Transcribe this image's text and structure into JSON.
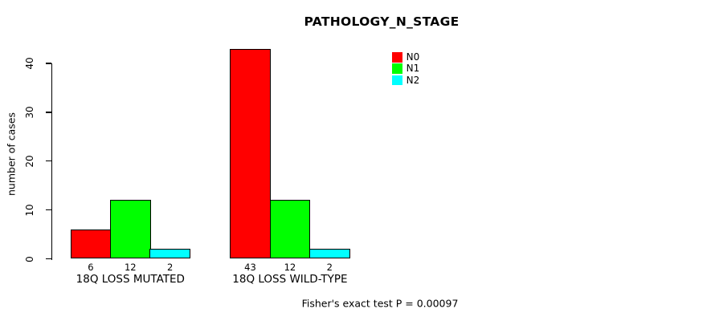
{
  "chart_data": {
    "type": "bar",
    "title": "PATHOLOGY_N_STAGE",
    "ylabel": "number of cases",
    "xlabel": "",
    "categories": [
      "18Q LOSS MUTATED",
      "18Q LOSS WILD-TYPE"
    ],
    "series": [
      {
        "name": "N0",
        "color": "#ff0000",
        "values": [
          6,
          43
        ]
      },
      {
        "name": "N1",
        "color": "#00ff00",
        "values": [
          12,
          12
        ]
      },
      {
        "name": "N2",
        "color": "#00ffff",
        "values": [
          2,
          2
        ]
      }
    ],
    "bar_value_labels": [
      [
        6,
        12,
        2
      ],
      [
        43,
        12,
        2
      ]
    ],
    "yticks": [
      0,
      10,
      20,
      30,
      40
    ],
    "ylim": [
      0,
      43
    ],
    "grid": false,
    "legend_position": "top-right-inside",
    "annotation": "Fisher's exact test P = 0.00097",
    "colors": {
      "axis": "#000000",
      "bar_border": "#000000",
      "background": "#ffffff"
    }
  }
}
